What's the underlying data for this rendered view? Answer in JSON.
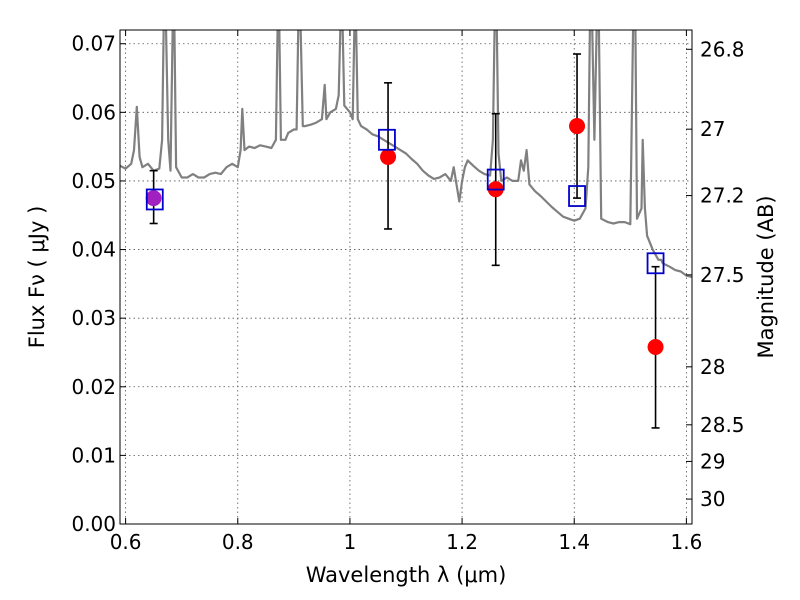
{
  "chart_data": {
    "type": "scatter",
    "title": "",
    "xlabel": "Wavelength  λ (μm)",
    "ylabel": "Flux  Fν ( μJy )",
    "y2label": "Magnitude (AB)",
    "xlim": [
      0.59,
      1.61
    ],
    "ylim": [
      0.0,
      0.072
    ],
    "grid": true,
    "x_ticks": [
      {
        "value": 0.6,
        "label": "0.6"
      },
      {
        "value": 0.8,
        "label": "0.8"
      },
      {
        "value": 1.0,
        "label": "1"
      },
      {
        "value": 1.2,
        "label": "1.2"
      },
      {
        "value": 1.4,
        "label": "1.4"
      },
      {
        "value": 1.6,
        "label": "1.6"
      }
    ],
    "y_ticks": [
      {
        "value": 0.0,
        "label": "0.00"
      },
      {
        "value": 0.01,
        "label": "0.01"
      },
      {
        "value": 0.02,
        "label": "0.02"
      },
      {
        "value": 0.03,
        "label": "0.03"
      },
      {
        "value": 0.04,
        "label": "0.04"
      },
      {
        "value": 0.05,
        "label": "0.05"
      },
      {
        "value": 0.06,
        "label": "0.06"
      },
      {
        "value": 0.07,
        "label": "0.07"
      }
    ],
    "y2_ticks": [
      {
        "mag": 26.8,
        "label": "26.8"
      },
      {
        "mag": 27.0,
        "label": "27"
      },
      {
        "mag": 27.2,
        "label": "27.2"
      },
      {
        "mag": 27.5,
        "label": "27.5"
      },
      {
        "mag": 28.0,
        "label": "28"
      },
      {
        "mag": 28.5,
        "label": "28.5"
      },
      {
        "mag": 29.0,
        "label": "29"
      },
      {
        "mag": 30.0,
        "label": "30"
      }
    ],
    "colors": {
      "spectrum": "#808080",
      "observed": "#ff0000",
      "model": "#0000cc",
      "first_point": "#a020c0",
      "grid": "#555555",
      "errorbar": "#000000"
    },
    "series": [
      {
        "kind": "spectrum",
        "points": [
          [
            0.59,
            0.0522
          ],
          [
            0.6,
            0.0518
          ],
          [
            0.61,
            0.0525
          ],
          [
            0.615,
            0.0545
          ],
          [
            0.62,
            0.0608
          ],
          [
            0.625,
            0.0535
          ],
          [
            0.63,
            0.052
          ],
          [
            0.64,
            0.0525
          ],
          [
            0.65,
            0.0515
          ],
          [
            0.66,
            0.0518
          ],
          [
            0.665,
            0.056
          ],
          [
            0.668,
            0.0725
          ],
          [
            0.672,
            0.0725
          ],
          [
            0.676,
            0.056
          ],
          [
            0.68,
            0.0515
          ],
          [
            0.684,
            0.0725
          ],
          [
            0.687,
            0.0725
          ],
          [
            0.69,
            0.052
          ],
          [
            0.7,
            0.0505
          ],
          [
            0.71,
            0.0505
          ],
          [
            0.72,
            0.051
          ],
          [
            0.73,
            0.0505
          ],
          [
            0.74,
            0.0505
          ],
          [
            0.75,
            0.051
          ],
          [
            0.76,
            0.0512
          ],
          [
            0.77,
            0.051
          ],
          [
            0.78,
            0.052
          ],
          [
            0.79,
            0.0525
          ],
          [
            0.8,
            0.052
          ],
          [
            0.805,
            0.0545
          ],
          [
            0.808,
            0.0605
          ],
          [
            0.812,
            0.0545
          ],
          [
            0.82,
            0.055
          ],
          [
            0.83,
            0.0548
          ],
          [
            0.84,
            0.0552
          ],
          [
            0.85,
            0.055
          ],
          [
            0.86,
            0.0548
          ],
          [
            0.868,
            0.056
          ],
          [
            0.871,
            0.0725
          ],
          [
            0.874,
            0.0725
          ],
          [
            0.877,
            0.056
          ],
          [
            0.885,
            0.056
          ],
          [
            0.89,
            0.057
          ],
          [
            0.9,
            0.0575
          ],
          [
            0.905,
            0.0575
          ],
          [
            0.908,
            0.0725
          ],
          [
            0.912,
            0.0725
          ],
          [
            0.916,
            0.058
          ],
          [
            0.92,
            0.058
          ],
          [
            0.93,
            0.0582
          ],
          [
            0.94,
            0.0585
          ],
          [
            0.95,
            0.059
          ],
          [
            0.955,
            0.064
          ],
          [
            0.958,
            0.059
          ],
          [
            0.965,
            0.06
          ],
          [
            0.975,
            0.0605
          ],
          [
            0.98,
            0.0625
          ],
          [
            0.983,
            0.0725
          ],
          [
            0.987,
            0.0725
          ],
          [
            0.99,
            0.061
          ],
          [
            1.0,
            0.06
          ],
          [
            1.005,
            0.059
          ],
          [
            1.008,
            0.0725
          ],
          [
            1.011,
            0.0725
          ],
          [
            1.014,
            0.059
          ],
          [
            1.02,
            0.058
          ],
          [
            1.03,
            0.0575
          ],
          [
            1.04,
            0.0568
          ],
          [
            1.05,
            0.0565
          ],
          [
            1.06,
            0.056
          ],
          [
            1.07,
            0.0555
          ],
          [
            1.08,
            0.055
          ],
          [
            1.09,
            0.0545
          ],
          [
            1.1,
            0.054
          ],
          [
            1.11,
            0.0532
          ],
          [
            1.12,
            0.0525
          ],
          [
            1.13,
            0.0515
          ],
          [
            1.14,
            0.0508
          ],
          [
            1.15,
            0.0503
          ],
          [
            1.16,
            0.0505
          ],
          [
            1.17,
            0.051
          ],
          [
            1.18,
            0.05
          ],
          [
            1.185,
            0.052
          ],
          [
            1.19,
            0.0495
          ],
          [
            1.195,
            0.047
          ],
          [
            1.2,
            0.05
          ],
          [
            1.205,
            0.052
          ],
          [
            1.21,
            0.053
          ],
          [
            1.22,
            0.0522
          ],
          [
            1.23,
            0.0515
          ],
          [
            1.24,
            0.051
          ],
          [
            1.25,
            0.0508
          ],
          [
            1.255,
            0.056
          ],
          [
            1.258,
            0.0725
          ],
          [
            1.262,
            0.0725
          ],
          [
            1.265,
            0.054
          ],
          [
            1.27,
            0.05
          ],
          [
            1.28,
            0.0505
          ],
          [
            1.29,
            0.05
          ],
          [
            1.3,
            0.05
          ],
          [
            1.305,
            0.053
          ],
          [
            1.31,
            0.0515
          ],
          [
            1.315,
            0.0545
          ],
          [
            1.32,
            0.0495
          ],
          [
            1.33,
            0.0485
          ],
          [
            1.34,
            0.0478
          ],
          [
            1.35,
            0.047
          ],
          [
            1.36,
            0.0462
          ],
          [
            1.37,
            0.0455
          ],
          [
            1.38,
            0.0448
          ],
          [
            1.39,
            0.0445
          ],
          [
            1.4,
            0.0442
          ],
          [
            1.41,
            0.0445
          ],
          [
            1.42,
            0.046
          ],
          [
            1.425,
            0.052
          ],
          [
            1.428,
            0.0725
          ],
          [
            1.432,
            0.0725
          ],
          [
            1.436,
            0.056
          ],
          [
            1.44,
            0.0725
          ],
          [
            1.444,
            0.0725
          ],
          [
            1.448,
            0.0445
          ],
          [
            1.46,
            0.044
          ],
          [
            1.47,
            0.0438
          ],
          [
            1.48,
            0.044
          ],
          [
            1.49,
            0.044
          ],
          [
            1.5,
            0.0437
          ],
          [
            1.505,
            0.0725
          ],
          [
            1.509,
            0.0725
          ],
          [
            1.512,
            0.0445
          ],
          [
            1.52,
            0.046
          ],
          [
            1.522,
            0.056
          ],
          [
            1.526,
            0.046
          ],
          [
            1.53,
            0.042
          ],
          [
            1.54,
            0.04
          ],
          [
            1.55,
            0.0385
          ],
          [
            1.555,
            0.0385
          ],
          [
            1.558,
            0.038
          ],
          [
            1.57,
            0.0375
          ],
          [
            1.58,
            0.037
          ],
          [
            1.59,
            0.0368
          ],
          [
            1.6,
            0.0362
          ],
          [
            1.61,
            0.036
          ]
        ]
      },
      {
        "kind": "observed",
        "points": [
          {
            "x": 0.65,
            "y": 0.0475,
            "err_low": 0.0438,
            "err_high": 0.0515
          },
          {
            "x": 1.068,
            "y": 0.0535,
            "err_low": 0.043,
            "err_high": 0.0643
          },
          {
            "x": 1.26,
            "y": 0.0488,
            "err_low": 0.0377,
            "err_high": 0.0598
          },
          {
            "x": 1.405,
            "y": 0.058,
            "err_low": 0.0475,
            "err_high": 0.0685
          },
          {
            "x": 1.545,
            "y": 0.0258,
            "err_low": 0.014,
            "err_high": 0.0375
          }
        ]
      },
      {
        "kind": "model",
        "points": [
          {
            "x": 0.652,
            "y": 0.0473
          },
          {
            "x": 1.066,
            "y": 0.056
          },
          {
            "x": 1.26,
            "y": 0.0502
          },
          {
            "x": 1.405,
            "y": 0.0478
          },
          {
            "x": 1.545,
            "y": 0.038
          }
        ]
      }
    ]
  }
}
